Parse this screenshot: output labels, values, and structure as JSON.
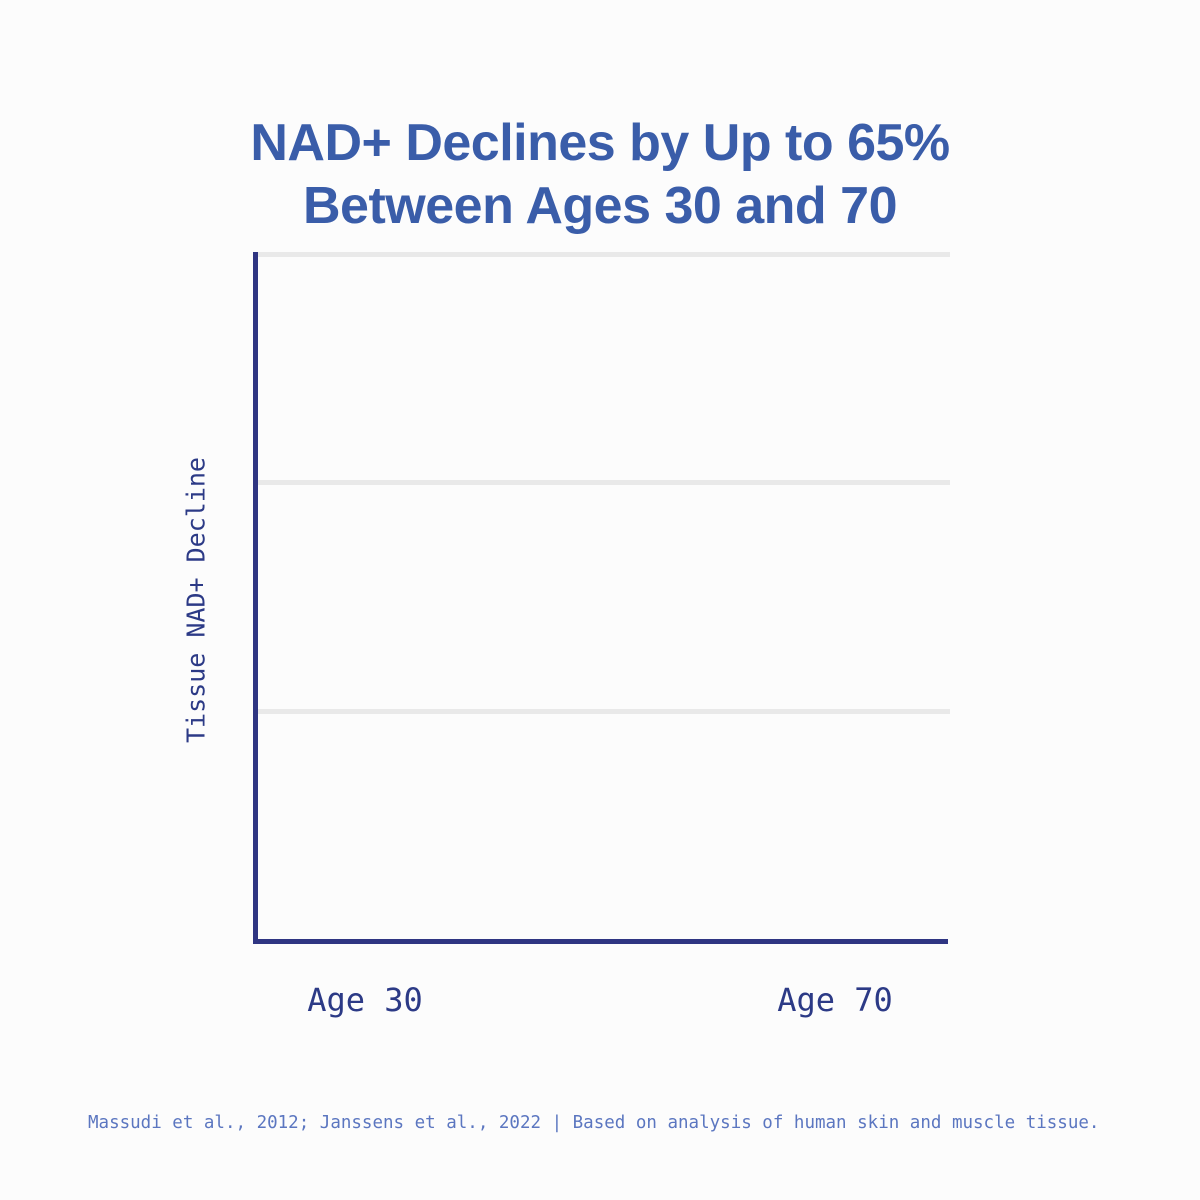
{
  "title": {
    "line1": "NAD+ Declines by Up to 65%",
    "line2": "Between Ages 30 and 70"
  },
  "footer": {
    "text": "Massudi et al., 2012; Janssens et al., 2022 | Based on analysis of human skin and muscle tissue."
  },
  "colors": {
    "title_blue": "#3A5DA9",
    "axis_navy": "#2F3582",
    "tick_label_navy": "#2C3A86",
    "footer_blue": "#5B76C0",
    "gridline_gray": "#E9E9E9",
    "background": "#FCFCFC"
  },
  "chart_data": {
    "type": "bar",
    "title": "NAD+ Declines by Up to 65% Between Ages 30 and 70",
    "categories": [
      "Age 30",
      "Age 70"
    ],
    "values": [],
    "xlabel": "",
    "ylabel": "Tissue NAD+ Decline",
    "grid": true,
    "gridline_count": 3,
    "legend": false,
    "note": "Plot area is empty in this frame; no bars or numeric values are rendered. Only axes, 3 horizontal gridlines, category labels and citation are visible."
  }
}
